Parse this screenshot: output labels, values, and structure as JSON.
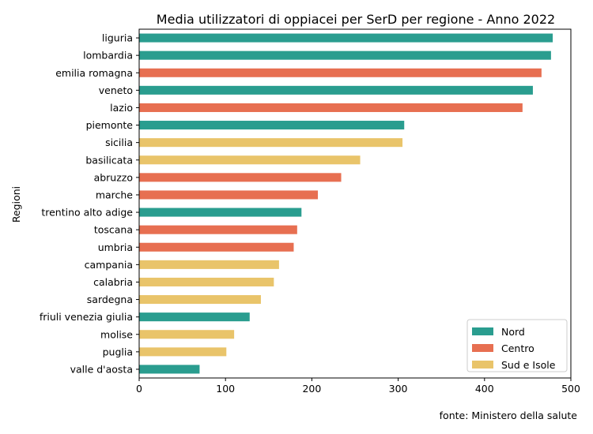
{
  "chart_data": {
    "type": "bar",
    "orientation": "horizontal",
    "title": "Media utilizzatori di oppiacei per SerD per regione - Anno 2022",
    "ylabel": "Regioni",
    "xlabel": "",
    "xlim": [
      0,
      500
    ],
    "xticks": [
      0,
      100,
      200,
      300,
      400,
      500
    ],
    "grid": false,
    "legend_position": "bottom-right",
    "legend": [
      {
        "name": "Nord",
        "color": "#2a9d8f"
      },
      {
        "name": "Centro",
        "color": "#e76f51"
      },
      {
        "name": "Sud e Isole",
        "color": "#e9c46a"
      }
    ],
    "bars": [
      {
        "category": "liguria",
        "value": 479,
        "group": "Nord"
      },
      {
        "category": "lombardia",
        "value": 477,
        "group": "Nord"
      },
      {
        "category": "emilia romagna",
        "value": 466,
        "group": "Centro"
      },
      {
        "category": "veneto",
        "value": 456,
        "group": "Nord"
      },
      {
        "category": "lazio",
        "value": 444,
        "group": "Centro"
      },
      {
        "category": "piemonte",
        "value": 307,
        "group": "Nord"
      },
      {
        "category": "sicilia",
        "value": 305,
        "group": "Sud e Isole"
      },
      {
        "category": "basilicata",
        "value": 256,
        "group": "Sud e Isole"
      },
      {
        "category": "abruzzo",
        "value": 234,
        "group": "Centro"
      },
      {
        "category": "marche",
        "value": 207,
        "group": "Centro"
      },
      {
        "category": "trentino alto adige",
        "value": 188,
        "group": "Nord"
      },
      {
        "category": "toscana",
        "value": 183,
        "group": "Centro"
      },
      {
        "category": "umbria",
        "value": 179,
        "group": "Centro"
      },
      {
        "category": "campania",
        "value": 162,
        "group": "Sud e Isole"
      },
      {
        "category": "calabria",
        "value": 156,
        "group": "Sud e Isole"
      },
      {
        "category": "sardegna",
        "value": 141,
        "group": "Sud e Isole"
      },
      {
        "category": "friuli venezia giulia",
        "value": 128,
        "group": "Nord"
      },
      {
        "category": "molise",
        "value": 110,
        "group": "Sud e Isole"
      },
      {
        "category": "puglia",
        "value": 101,
        "group": "Sud e Isole"
      },
      {
        "category": "valle d'aosta",
        "value": 70,
        "group": "Nord"
      }
    ]
  },
  "source_note": "fonte: Ministero della salute"
}
